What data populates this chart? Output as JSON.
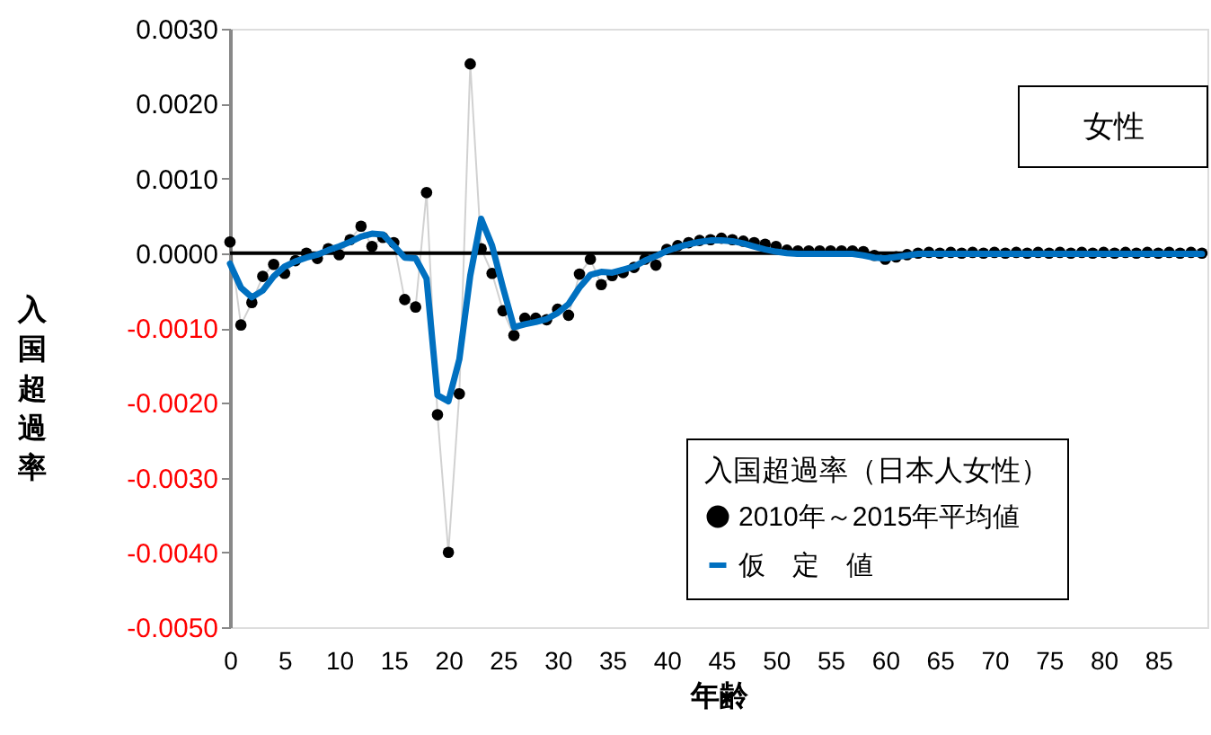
{
  "chart_data": {
    "type": "line",
    "xlabel": "年齢",
    "ylabel": "入国超過率",
    "legend_title": "入国超過率（日本人女性）",
    "annotations": [
      "女性"
    ],
    "x": [
      0,
      1,
      2,
      3,
      4,
      5,
      6,
      7,
      8,
      9,
      10,
      11,
      12,
      13,
      14,
      15,
      16,
      17,
      18,
      19,
      20,
      21,
      22,
      23,
      24,
      25,
      26,
      27,
      28,
      29,
      30,
      31,
      32,
      33,
      34,
      35,
      36,
      37,
      38,
      39,
      40,
      41,
      42,
      43,
      44,
      45,
      46,
      47,
      48,
      49,
      50,
      51,
      52,
      53,
      54,
      55,
      56,
      57,
      58,
      59,
      60,
      61,
      62,
      63,
      64,
      65,
      66,
      67,
      68,
      69,
      70,
      71,
      72,
      73,
      74,
      75,
      76,
      77,
      78,
      79,
      80,
      81,
      82,
      83,
      84,
      85,
      86,
      87,
      88,
      89
    ],
    "series": [
      {
        "name": "2010年～2015年平均値",
        "type": "line",
        "marker": "circle",
        "color": "#000000",
        "values": [
          0.00015,
          -0.00096,
          -0.00066,
          -0.00031,
          -0.00015,
          -0.00027,
          -0.0001,
          0.0,
          -7e-05,
          6e-05,
          -2e-05,
          0.00018,
          0.00036,
          9e-05,
          0.00021,
          0.00014,
          -0.00062,
          -0.00072,
          0.00081,
          -0.00216,
          -0.004,
          -0.00188,
          0.00253,
          6e-05,
          -0.00027,
          -0.00077,
          -0.0011,
          -0.00087,
          -0.00087,
          -0.00089,
          -0.00075,
          -0.00083,
          -0.00028,
          -8e-05,
          -0.00042,
          -0.0003,
          -0.00026,
          -0.00019,
          -8e-05,
          -0.00016,
          5e-05,
          0.0001,
          0.00014,
          0.00017,
          0.00018,
          0.0002,
          0.00018,
          0.00016,
          0.00014,
          0.00012,
          9e-05,
          4e-05,
          3e-05,
          3e-05,
          3e-05,
          3e-05,
          3e-05,
          3e-05,
          2e-05,
          -3e-05,
          -8e-05,
          -5e-05,
          -2e-05,
          0.0,
          1e-05,
          0.0,
          1e-05,
          0.0,
          1e-05,
          0.0,
          1e-05,
          0.0,
          1e-05,
          0.0,
          1e-05,
          0.0,
          1e-05,
          0.0,
          1e-05,
          0.0,
          1e-05,
          0.0,
          1e-05,
          0.0,
          1e-05,
          0.0,
          1e-05,
          0.0,
          1e-05,
          0.0
        ]
      },
      {
        "name": "仮　定　値",
        "marker": "none",
        "color": "#0070c0",
        "values": [
          -0.00014,
          -0.00046,
          -0.00059,
          -0.0005,
          -0.00031,
          -0.00018,
          -0.00011,
          -6e-05,
          -2e-05,
          4e-05,
          9e-05,
          0.00015,
          0.00022,
          0.00026,
          0.00025,
          0.0001,
          -6e-05,
          -7e-05,
          -0.00034,
          -0.0019,
          -0.00198,
          -0.00142,
          -0.0003,
          0.00046,
          0.0001,
          -0.00046,
          -0.00099,
          -0.00095,
          -0.00092,
          -0.00088,
          -0.0008,
          -0.00068,
          -0.00046,
          -0.00029,
          -0.00025,
          -0.00026,
          -0.00022,
          -0.00018,
          -0.0001,
          -4e-05,
          3e-05,
          8e-05,
          0.00012,
          0.00015,
          0.00017,
          0.00017,
          0.00016,
          0.00013,
          9e-05,
          5e-05,
          2e-05,
          0.0,
          -1e-05,
          -1e-05,
          -1e-05,
          -1e-05,
          -1e-05,
          -1e-05,
          -3e-05,
          -6e-05,
          -7e-05,
          -5e-05,
          -3e-05,
          -1e-05,
          -1e-05,
          -1e-05,
          -1e-05,
          -1e-05,
          -1e-05,
          -1e-05,
          -1e-05,
          -1e-05,
          -1e-05,
          -1e-05,
          -1e-05,
          -1e-05,
          -1e-05,
          -1e-05,
          -1e-05,
          -1e-05,
          -1e-05,
          -1e-05,
          -1e-05,
          -1e-05,
          -1e-05,
          -1e-05,
          -1e-05,
          -1e-05,
          -1e-05,
          -1e-05
        ]
      }
    ],
    "xlim": [
      0,
      89.5
    ],
    "xticks": [
      0,
      5,
      10,
      15,
      20,
      25,
      30,
      35,
      40,
      45,
      50,
      55,
      60,
      65,
      70,
      75,
      80,
      85
    ],
    "ylim": [
      -0.005,
      0.003
    ],
    "yticks": [
      {
        "value": 0.003,
        "label": "0.0030"
      },
      {
        "value": 0.002,
        "label": "0.0020"
      },
      {
        "value": 0.001,
        "label": "0.0010"
      },
      {
        "value": 0.0,
        "label": "0.0000"
      },
      {
        "value": -0.001,
        "label": "-0.0010"
      },
      {
        "value": -0.002,
        "label": "-0.0020"
      },
      {
        "value": -0.003,
        "label": "-0.0030"
      },
      {
        "value": -0.004,
        "label": "-0.0040"
      },
      {
        "value": -0.005,
        "label": "-0.0050"
      }
    ],
    "ref_lines": [
      {
        "axis": "y",
        "value": 0.0,
        "color": "#000000"
      }
    ],
    "grid": false,
    "legend": "bottom right"
  }
}
